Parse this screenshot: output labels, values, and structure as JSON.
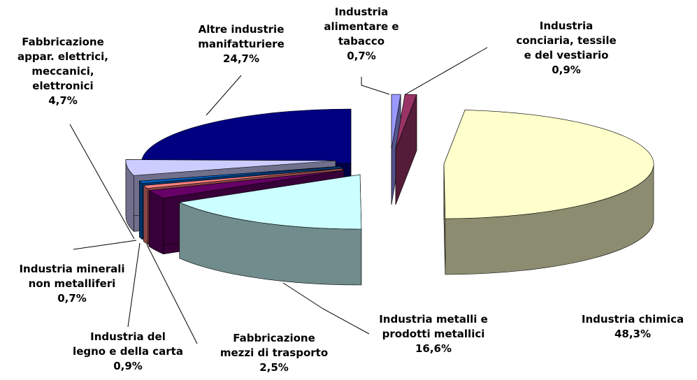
{
  "chart_data": {
    "type": "pie",
    "categories": [
      [
        "Industria",
        "alimentare e",
        "tabacco"
      ],
      [
        "Industria",
        "conciaria, tessile",
        "e del vestiario"
      ],
      [
        "Industria chimica"
      ],
      [
        "Industria metalli e",
        "prodotti metallici"
      ],
      [
        "Fabbricazione",
        "mezzi di trasporto"
      ],
      [
        "Industria del",
        "legno e della carta"
      ],
      [
        "Industria minerali",
        "non metalliferi"
      ],
      [
        "Fabbricazione",
        "appar. elettrici,",
        "meccanici,",
        "elettronici"
      ],
      [
        "Altre industrie",
        "manifatturiere"
      ]
    ],
    "values": [
      0.7,
      0.9,
      48.3,
      16.6,
      2.5,
      0.9,
      0.7,
      4.7,
      24.7
    ],
    "value_labels": [
      "0,7%",
      "0,9%",
      "48,3%",
      "16,6%",
      "2,5%",
      "0,9%",
      "0,7%",
      "4,7%",
      "24,7%"
    ],
    "colors": [
      "#9999ff",
      "#993366",
      "#ffffcc",
      "#ccffff",
      "#660066",
      "#ff8080",
      "#0066cc",
      "#ccccff",
      "#000080"
    ]
  }
}
